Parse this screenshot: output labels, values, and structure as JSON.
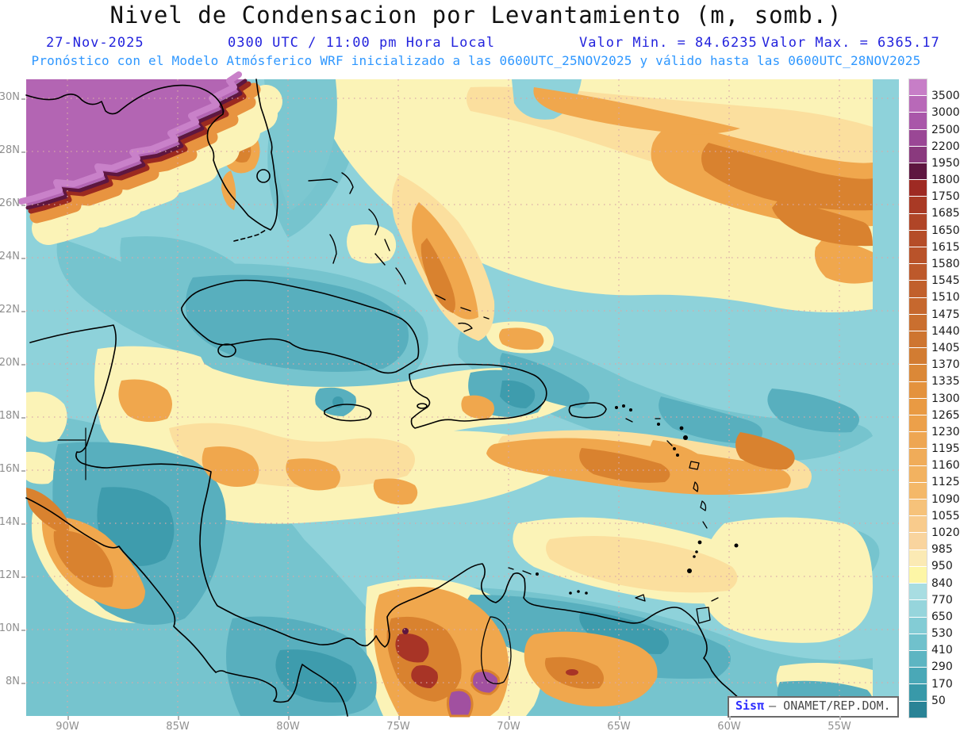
{
  "header": {
    "title": "Nivel de Condensacion por Levantamiento (m, somb.)",
    "date": "27-Nov-2025",
    "time_local": "0300 UTC / 11:00 pm Hora Local",
    "valor_min_label": "Valor Min. = 84.6235",
    "valor_max_label": "Valor Max. = 6365.17",
    "forecast": "Pronóstico con el Modelo Atmósferico WRF inicializado a las 0600UTC_25NOV2025 y válido hasta las  0600UTC_28NOV2025"
  },
  "axes": {
    "lat_labels": [
      "30N",
      "28N",
      "26N",
      "24N",
      "22N",
      "20N",
      "18N",
      "16N",
      "14N",
      "12N",
      "10N",
      "8N"
    ],
    "lon_labels": [
      "90W",
      "85W",
      "80W",
      "75W",
      "70W",
      "65W",
      "60W",
      "55W"
    ]
  },
  "colorbar": {
    "units": "m",
    "labels": [
      "3500",
      "3000",
      "2500",
      "2200",
      "1950",
      "1800",
      "1750",
      "1685",
      "1650",
      "1615",
      "1580",
      "1545",
      "1510",
      "1475",
      "1440",
      "1405",
      "1370",
      "1335",
      "1300",
      "1265",
      "1230",
      "1195",
      "1160",
      "1125",
      "1090",
      "1055",
      "1020",
      "985",
      "950",
      "840",
      "770",
      "650",
      "530",
      "410",
      "290",
      "170",
      "50"
    ],
    "colors": [
      "#c77ec7",
      "#b869b8",
      "#a957a9",
      "#9a4795",
      "#8a3a7e",
      "#5e1640",
      "#9e2a23",
      "#a93a25",
      "#b04527",
      "#b54d28",
      "#b9532a",
      "#bd592b",
      "#c1602c",
      "#c6682e",
      "#ca6f2f",
      "#ce7530",
      "#d27c32",
      "#db8837",
      "#e4923d",
      "#e99a43",
      "#eca04a",
      "#eea652",
      "#f0ac59",
      "#f2b260",
      "#f4b868",
      "#f6c27a",
      "#f8cb8c",
      "#f9d49e",
      "#fbeab4",
      "#fdf6a6",
      "#a8dde2",
      "#96d5dc",
      "#83ccd5",
      "#70c1cc",
      "#5db5c2",
      "#4aa8b7",
      "#3899a9",
      "#2a8396"
    ]
  },
  "watermark": {
    "brand": "Sisπ",
    "text": "– ONAMET/REP.DOM."
  },
  "palette": {
    "sea_base": "#8ed2da",
    "title_color": "#111111",
    "meta_color": "#2323dd",
    "forecast_color": "#2e97ff",
    "axis_label_color": "#8f8f8f",
    "gridline_color": "#d9a8a8",
    "coastline_color": "#000000"
  }
}
